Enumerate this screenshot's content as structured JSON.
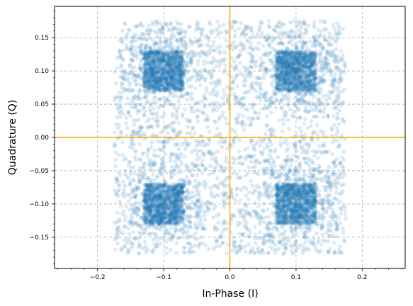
{
  "chart_data": {
    "type": "scatter",
    "title": "",
    "xlabel": "In-Phase (I)",
    "ylabel": "Quadrature (Q)",
    "xlim": [
      -0.265,
      0.265
    ],
    "ylim": [
      -0.197,
      0.197
    ],
    "xticks": [
      -0.2,
      -0.1,
      0.0,
      0.1,
      0.2
    ],
    "xtick_labels": [
      "−0.2",
      "−0.1",
      "0.0",
      "0.1",
      "0.2"
    ],
    "yticks": [
      -0.15,
      -0.1,
      -0.05,
      0.0,
      0.05,
      0.1,
      0.15
    ],
    "ytick_labels": [
      "−0.15",
      "−0.10",
      "−0.05",
      "0.00",
      "0.05",
      "0.10",
      "0.15"
    ],
    "grid": true,
    "legend": "none",
    "reference_lines": {
      "x": 0.0,
      "y": 0.0,
      "color": "#ffa500"
    },
    "series": [
      {
        "point_color": "#1f77b4",
        "alpha": 0.15,
        "constellation_points": [
          [
            -0.1,
            0.1
          ],
          [
            0.1,
            0.1
          ],
          [
            -0.1,
            -0.1
          ],
          [
            0.1,
            -0.1
          ]
        ],
        "dense_cluster_halfwidth": 0.03,
        "diffuse_extent": [
          -0.175,
          0.175
        ]
      }
    ]
  }
}
